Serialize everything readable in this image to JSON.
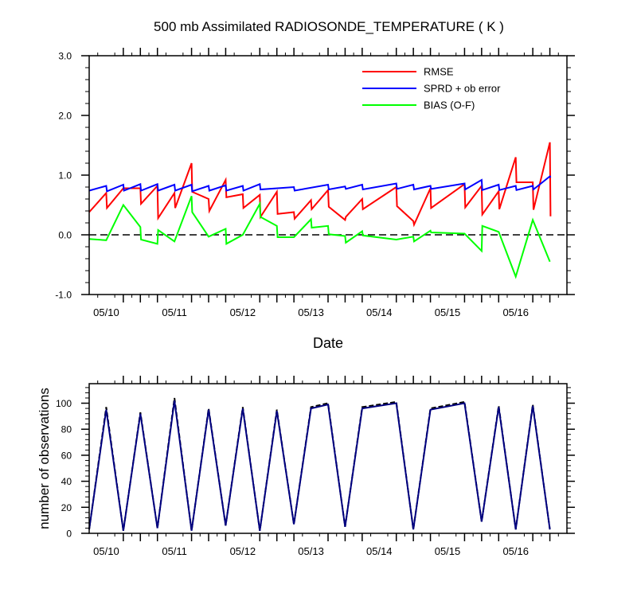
{
  "chart_data": [
    {
      "type": "line",
      "title": "500 mb Assimilated RADIOSONDE_TEMPERATURE ( K )",
      "xlabel": "Date",
      "ylabel": "",
      "xlim": [
        0,
        7
      ],
      "ylim": [
        -1.0,
        3.0
      ],
      "x_ticks": [
        {
          "x": 0.25,
          "label": "05/10"
        },
        {
          "x": 1.25,
          "label": "05/11"
        },
        {
          "x": 2.25,
          "label": "05/12"
        },
        {
          "x": 3.25,
          "label": "05/13"
        },
        {
          "x": 4.25,
          "label": "05/14"
        },
        {
          "x": 5.25,
          "label": "05/15"
        },
        {
          "x": 6.25,
          "label": "05/16"
        }
      ],
      "y_ticks": [
        {
          "y": -1.0,
          "label": "-1.0"
        },
        {
          "y": 0.0,
          "label": "0.0"
        },
        {
          "y": 1.0,
          "label": "1.0"
        },
        {
          "y": 2.0,
          "label": "2.0"
        },
        {
          "y": 3.0,
          "label": "3.0"
        }
      ],
      "zero_line": true,
      "legend_placement": "top-right",
      "series": [
        {
          "name": "RMSE",
          "color": "#ff0000",
          "points": [
            [
              0.0,
              0.38
            ],
            [
              0.25,
              0.7
            ],
            [
              0.26,
              0.45
            ],
            [
              0.5,
              0.78
            ],
            [
              0.75,
              0.78
            ],
            [
              0.76,
              0.52
            ],
            [
              1.0,
              0.82
            ],
            [
              1.01,
              0.28
            ],
            [
              1.25,
              0.7
            ],
            [
              1.26,
              0.45
            ],
            [
              1.5,
              1.2
            ],
            [
              1.51,
              0.72
            ],
            [
              1.75,
              0.6
            ],
            [
              1.76,
              0.4
            ],
            [
              2.0,
              0.92
            ],
            [
              2.01,
              0.63
            ],
            [
              2.25,
              0.68
            ],
            [
              2.26,
              0.45
            ],
            [
              2.5,
              0.67
            ],
            [
              2.51,
              0.3
            ],
            [
              2.75,
              0.72
            ],
            [
              2.76,
              0.35
            ],
            [
              3.0,
              0.38
            ],
            [
              3.01,
              0.27
            ],
            [
              3.25,
              0.58
            ],
            [
              3.26,
              0.43
            ],
            [
              3.5,
              0.75
            ],
            [
              3.51,
              0.47
            ],
            [
              3.75,
              0.25
            ],
            [
              3.76,
              0.3
            ],
            [
              4.0,
              0.6
            ],
            [
              4.01,
              0.43
            ],
            [
              4.5,
              0.8
            ],
            [
              4.51,
              0.48
            ],
            [
              4.75,
              0.23
            ],
            [
              4.76,
              0.17
            ],
            [
              5.0,
              0.78
            ],
            [
              5.01,
              0.45
            ],
            [
              5.5,
              0.85
            ],
            [
              5.51,
              0.46
            ],
            [
              5.75,
              0.82
            ],
            [
              5.76,
              0.34
            ],
            [
              6.0,
              0.73
            ],
            [
              6.01,
              0.43
            ],
            [
              6.25,
              1.3
            ],
            [
              6.26,
              0.88
            ],
            [
              6.5,
              0.88
            ],
            [
              6.51,
              0.42
            ],
            [
              6.75,
              1.55
            ],
            [
              6.76,
              0.31
            ]
          ]
        },
        {
          "name": "SPRD + ob error",
          "color": "#0000ff",
          "points": [
            [
              0.0,
              0.74
            ],
            [
              0.25,
              0.82
            ],
            [
              0.26,
              0.73
            ],
            [
              0.5,
              0.84
            ],
            [
              0.51,
              0.74
            ],
            [
              0.75,
              0.85
            ],
            [
              0.76,
              0.74
            ],
            [
              1.0,
              0.85
            ],
            [
              1.01,
              0.74
            ],
            [
              1.25,
              0.84
            ],
            [
              1.26,
              0.74
            ],
            [
              1.5,
              0.84
            ],
            [
              1.51,
              0.73
            ],
            [
              1.75,
              0.82
            ],
            [
              1.76,
              0.74
            ],
            [
              2.0,
              0.83
            ],
            [
              2.01,
              0.74
            ],
            [
              2.25,
              0.82
            ],
            [
              2.26,
              0.74
            ],
            [
              2.5,
              0.85
            ],
            [
              2.51,
              0.76
            ],
            [
              3.0,
              0.8
            ],
            [
              3.01,
              0.74
            ],
            [
              3.5,
              0.84
            ],
            [
              3.51,
              0.76
            ],
            [
              3.75,
              0.81
            ],
            [
              3.76,
              0.77
            ],
            [
              4.0,
              0.84
            ],
            [
              4.01,
              0.76
            ],
            [
              4.5,
              0.86
            ],
            [
              4.51,
              0.77
            ],
            [
              4.75,
              0.84
            ],
            [
              4.76,
              0.76
            ],
            [
              5.0,
              0.82
            ],
            [
              5.01,
              0.77
            ],
            [
              5.5,
              0.86
            ],
            [
              5.51,
              0.76
            ],
            [
              5.75,
              0.92
            ],
            [
              5.76,
              0.75
            ],
            [
              6.0,
              0.84
            ],
            [
              6.01,
              0.75
            ],
            [
              6.25,
              0.82
            ],
            [
              6.26,
              0.75
            ],
            [
              6.5,
              0.82
            ],
            [
              6.51,
              0.76
            ],
            [
              6.75,
              0.98
            ],
            [
              6.76,
              0.96
            ]
          ]
        },
        {
          "name": "BIAS (O-F)",
          "color": "#00ff00",
          "points": [
            [
              0.0,
              -0.07
            ],
            [
              0.25,
              -0.09
            ],
            [
              0.5,
              0.5
            ],
            [
              0.75,
              0.13
            ],
            [
              0.76,
              -0.08
            ],
            [
              1.0,
              -0.15
            ],
            [
              1.01,
              0.08
            ],
            [
              1.25,
              -0.11
            ],
            [
              1.5,
              0.65
            ],
            [
              1.51,
              0.38
            ],
            [
              1.75,
              -0.03
            ],
            [
              2.0,
              0.1
            ],
            [
              2.01,
              -0.15
            ],
            [
              2.25,
              0.0
            ],
            [
              2.5,
              0.52
            ],
            [
              2.51,
              0.3
            ],
            [
              2.75,
              0.15
            ],
            [
              2.76,
              -0.04
            ],
            [
              3.0,
              -0.04
            ],
            [
              3.25,
              0.26
            ],
            [
              3.26,
              0.12
            ],
            [
              3.5,
              0.15
            ],
            [
              3.51,
              0.01
            ],
            [
              3.75,
              -0.02
            ],
            [
              3.76,
              -0.13
            ],
            [
              4.0,
              0.06
            ],
            [
              4.01,
              -0.01
            ],
            [
              4.5,
              -0.08
            ],
            [
              4.75,
              -0.03
            ],
            [
              4.76,
              -0.11
            ],
            [
              5.0,
              0.07
            ],
            [
              5.01,
              0.04
            ],
            [
              5.5,
              0.02
            ],
            [
              5.75,
              -0.27
            ],
            [
              5.76,
              0.15
            ],
            [
              6.0,
              0.05
            ],
            [
              6.25,
              -0.7
            ],
            [
              6.5,
              0.25
            ],
            [
              6.75,
              -0.45
            ]
          ]
        }
      ]
    },
    {
      "type": "line",
      "title": "",
      "xlabel": "",
      "ylabel": "number of observations",
      "xlim": [
        0,
        7
      ],
      "ylim": [
        0,
        115
      ],
      "x_ticks": [
        {
          "x": 0.25,
          "label": "05/10"
        },
        {
          "x": 1.25,
          "label": "05/11"
        },
        {
          "x": 2.25,
          "label": "05/12"
        },
        {
          "x": 3.25,
          "label": "05/13"
        },
        {
          "x": 4.25,
          "label": "05/14"
        },
        {
          "x": 5.25,
          "label": "05/15"
        },
        {
          "x": 6.25,
          "label": "05/16"
        }
      ],
      "y_ticks": [
        {
          "y": 0,
          "label": "0"
        },
        {
          "y": 20,
          "label": "20"
        },
        {
          "y": 40,
          "label": "40"
        },
        {
          "y": 60,
          "label": "60"
        },
        {
          "y": 80,
          "label": "80"
        },
        {
          "y": 100,
          "label": "100"
        }
      ],
      "series": [
        {
          "color": "#000000",
          "dash": true,
          "points": [
            [
              0.0,
              3
            ],
            [
              0.25,
              97
            ],
            [
              0.5,
              2
            ],
            [
              0.75,
              93
            ],
            [
              1.0,
              4
            ],
            [
              1.25,
              104
            ],
            [
              1.5,
              2
            ],
            [
              1.75,
              96
            ],
            [
              2.0,
              6
            ],
            [
              2.25,
              97
            ],
            [
              2.5,
              2
            ],
            [
              2.75,
              95
            ],
            [
              3.0,
              7
            ],
            [
              3.25,
              97
            ],
            [
              3.5,
              100
            ],
            [
              3.75,
              5
            ],
            [
              4.0,
              97
            ],
            [
              4.5,
              101
            ],
            [
              4.75,
              3
            ],
            [
              5.0,
              96
            ],
            [
              5.5,
              101
            ],
            [
              5.75,
              9
            ],
            [
              6.0,
              98
            ],
            [
              6.25,
              3
            ],
            [
              6.5,
              99
            ],
            [
              6.75,
              3
            ]
          ]
        },
        {
          "color": "#000080",
          "dash": false,
          "points": [
            [
              0.0,
              3
            ],
            [
              0.25,
              95
            ],
            [
              0.5,
              2
            ],
            [
              0.75,
              92
            ],
            [
              1.0,
              4
            ],
            [
              1.25,
              102
            ],
            [
              1.5,
              2
            ],
            [
              1.75,
              95
            ],
            [
              2.0,
              6
            ],
            [
              2.25,
              96
            ],
            [
              2.5,
              2
            ],
            [
              2.75,
              94
            ],
            [
              3.0,
              7
            ],
            [
              3.25,
              96
            ],
            [
              3.5,
              99
            ],
            [
              3.75,
              5
            ],
            [
              4.0,
              96
            ],
            [
              4.5,
              100
            ],
            [
              4.75,
              3
            ],
            [
              5.0,
              95
            ],
            [
              5.5,
              100
            ],
            [
              5.75,
              9
            ],
            [
              6.0,
              97
            ],
            [
              6.25,
              3
            ],
            [
              6.5,
              98
            ],
            [
              6.75,
              3
            ]
          ]
        }
      ]
    }
  ]
}
